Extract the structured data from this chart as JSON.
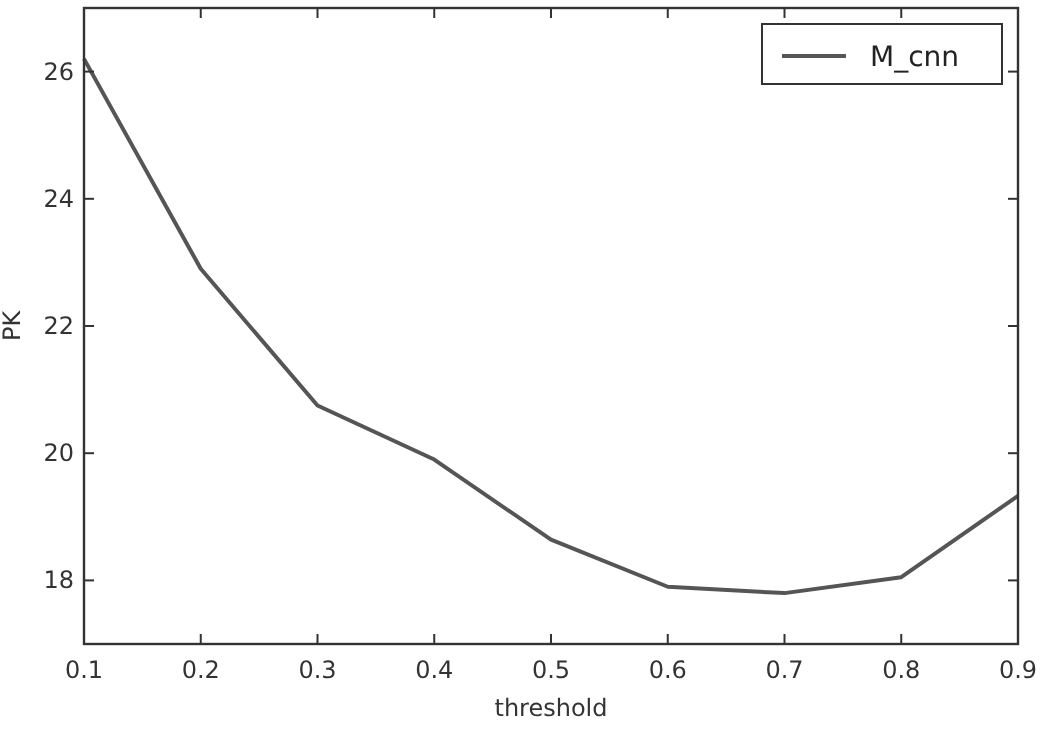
{
  "chart_data": {
    "type": "line",
    "xlabel": "threshold",
    "ylabel": "PK",
    "x": [
      0.1,
      0.2,
      0.3,
      0.4,
      0.5,
      0.6,
      0.7,
      0.8,
      0.9
    ],
    "series": [
      {
        "name": "M_cnn",
        "color": "#555555",
        "values": [
          26.2,
          22.9,
          20.75,
          19.9,
          18.64,
          17.9,
          17.8,
          18.05,
          19.33
        ]
      }
    ],
    "xlim": [
      0.1,
      0.9
    ],
    "ylim": [
      17,
      27
    ],
    "xticks": [
      0.1,
      0.2,
      0.3,
      0.4,
      0.5,
      0.6,
      0.7,
      0.8,
      0.9
    ],
    "yticks": [
      18,
      20,
      22,
      24,
      26
    ],
    "legend": "top right",
    "grid": false
  }
}
